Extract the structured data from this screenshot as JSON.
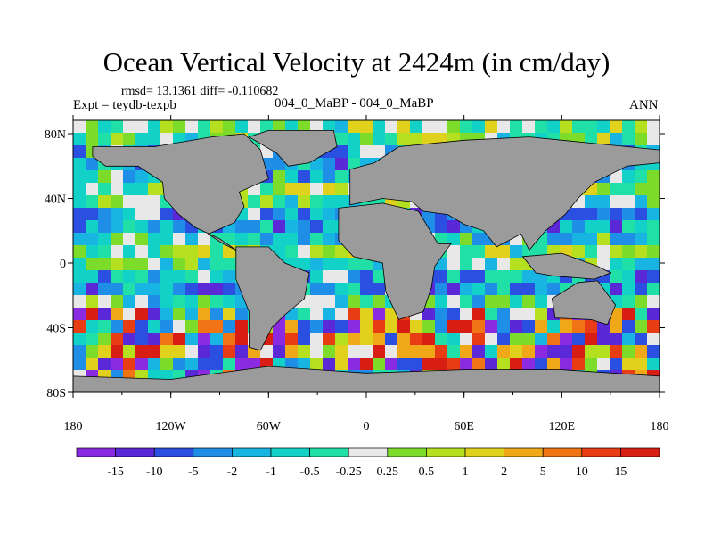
{
  "title": "Ocean Vertical Velocity at 2424m (in cm/day)",
  "stats": "rmsd= 13.1361 diff= -0.110682",
  "experiment": "Expt = teydb-texpb",
  "center_label": "004_0_MaBP - 004_0_MaBP",
  "season": "ANN",
  "chart_data": {
    "type": "heatmap",
    "x_ticks": [
      "180",
      "120W",
      "60W",
      "0",
      "60E",
      "120E",
      "180"
    ],
    "y_ticks": [
      "80N",
      "40N",
      "0",
      "40S",
      "80S"
    ],
    "colorbar_labels": [
      "-15",
      "-10",
      "-5",
      "-2",
      "-1",
      "-0.5",
      "-0.25",
      "0.25",
      "0.5",
      "1",
      "2",
      "5",
      "10",
      "15"
    ],
    "colorbar_colors": [
      "#8a2be2",
      "#5a28d6",
      "#2b4fe0",
      "#1e8ee6",
      "#18b4e2",
      "#12d2c8",
      "#20e0a8",
      "#e8e8e8",
      "#7ddc2a",
      "#b4e020",
      "#e0d21c",
      "#f0a818",
      "#f07414",
      "#e83c14",
      "#d81e14"
    ],
    "land_color": "#9b9b9b"
  }
}
